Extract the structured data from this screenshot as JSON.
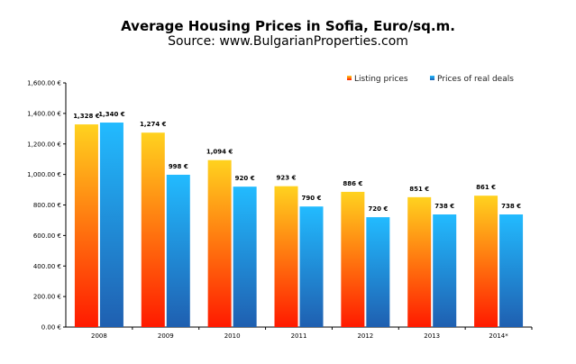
{
  "chart_data": {
    "type": "bar",
    "title": "Average Housing Prices in Sofia, Euro/sq.m.",
    "subtitle": "Source: www.BulgarianProperties.com",
    "categories": [
      "2008",
      "2009",
      "2010",
      "2011",
      "2012",
      "2013",
      "2014*"
    ],
    "series": [
      {
        "name": "Listing prices",
        "values": [
          1328,
          1274,
          1094,
          923,
          886,
          851,
          861
        ],
        "labels": [
          "1,328 €",
          "1,274 €",
          "1,094 €",
          "923 €",
          "886 €",
          "851 €",
          "861 €"
        ],
        "color_top": "#ffd21f",
        "color_bottom": "#ff1a00"
      },
      {
        "name": "Prices of real deals",
        "values": [
          1340,
          998,
          920,
          790,
          720,
          738,
          738
        ],
        "labels": [
          "1,340 €",
          "998 €",
          "920 €",
          "790 €",
          "720 €",
          "738 €",
          "738 €"
        ],
        "color_top": "#22bbff",
        "color_bottom": "#1f5fb0"
      }
    ],
    "ylim": [
      0,
      1600
    ],
    "yticks": [
      "0.00 €",
      "200.00 €",
      "400.00 €",
      "600.00 €",
      "800.00 €",
      "1,000.00 €",
      "1,200.00 €",
      "1,400.00 €",
      "1,600.00 €"
    ],
    "ytick_values": [
      0,
      200,
      400,
      600,
      800,
      1000,
      1200,
      1400,
      1600
    ],
    "grid": false,
    "legend": "top-right"
  }
}
